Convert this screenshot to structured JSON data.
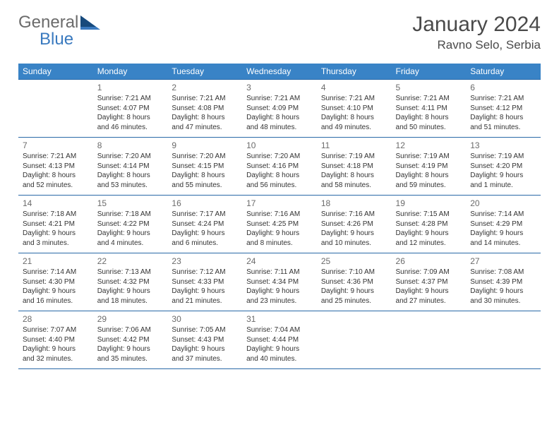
{
  "logo": {
    "word1": "General",
    "word2": "Blue"
  },
  "title": "January 2024",
  "location": "Ravno Selo, Serbia",
  "weekdays": [
    "Sunday",
    "Monday",
    "Tuesday",
    "Wednesday",
    "Thursday",
    "Friday",
    "Saturday"
  ],
  "colors": {
    "header_bg": "#3983c6",
    "header_text": "#ffffff",
    "row_border": "#2969a8",
    "daynum": "#6b6b6b",
    "body_text": "#333333",
    "logo_gray": "#6b6b6b",
    "logo_blue": "#3a7abf"
  },
  "weeks": [
    [
      {
        "num": "",
        "sunrise": "",
        "sunset": "",
        "daylight1": "",
        "daylight2": ""
      },
      {
        "num": "1",
        "sunrise": "Sunrise: 7:21 AM",
        "sunset": "Sunset: 4:07 PM",
        "daylight1": "Daylight: 8 hours",
        "daylight2": "and 46 minutes."
      },
      {
        "num": "2",
        "sunrise": "Sunrise: 7:21 AM",
        "sunset": "Sunset: 4:08 PM",
        "daylight1": "Daylight: 8 hours",
        "daylight2": "and 47 minutes."
      },
      {
        "num": "3",
        "sunrise": "Sunrise: 7:21 AM",
        "sunset": "Sunset: 4:09 PM",
        "daylight1": "Daylight: 8 hours",
        "daylight2": "and 48 minutes."
      },
      {
        "num": "4",
        "sunrise": "Sunrise: 7:21 AM",
        "sunset": "Sunset: 4:10 PM",
        "daylight1": "Daylight: 8 hours",
        "daylight2": "and 49 minutes."
      },
      {
        "num": "5",
        "sunrise": "Sunrise: 7:21 AM",
        "sunset": "Sunset: 4:11 PM",
        "daylight1": "Daylight: 8 hours",
        "daylight2": "and 50 minutes."
      },
      {
        "num": "6",
        "sunrise": "Sunrise: 7:21 AM",
        "sunset": "Sunset: 4:12 PM",
        "daylight1": "Daylight: 8 hours",
        "daylight2": "and 51 minutes."
      }
    ],
    [
      {
        "num": "7",
        "sunrise": "Sunrise: 7:21 AM",
        "sunset": "Sunset: 4:13 PM",
        "daylight1": "Daylight: 8 hours",
        "daylight2": "and 52 minutes."
      },
      {
        "num": "8",
        "sunrise": "Sunrise: 7:20 AM",
        "sunset": "Sunset: 4:14 PM",
        "daylight1": "Daylight: 8 hours",
        "daylight2": "and 53 minutes."
      },
      {
        "num": "9",
        "sunrise": "Sunrise: 7:20 AM",
        "sunset": "Sunset: 4:15 PM",
        "daylight1": "Daylight: 8 hours",
        "daylight2": "and 55 minutes."
      },
      {
        "num": "10",
        "sunrise": "Sunrise: 7:20 AM",
        "sunset": "Sunset: 4:16 PM",
        "daylight1": "Daylight: 8 hours",
        "daylight2": "and 56 minutes."
      },
      {
        "num": "11",
        "sunrise": "Sunrise: 7:19 AM",
        "sunset": "Sunset: 4:18 PM",
        "daylight1": "Daylight: 8 hours",
        "daylight2": "and 58 minutes."
      },
      {
        "num": "12",
        "sunrise": "Sunrise: 7:19 AM",
        "sunset": "Sunset: 4:19 PM",
        "daylight1": "Daylight: 8 hours",
        "daylight2": "and 59 minutes."
      },
      {
        "num": "13",
        "sunrise": "Sunrise: 7:19 AM",
        "sunset": "Sunset: 4:20 PM",
        "daylight1": "Daylight: 9 hours",
        "daylight2": "and 1 minute."
      }
    ],
    [
      {
        "num": "14",
        "sunrise": "Sunrise: 7:18 AM",
        "sunset": "Sunset: 4:21 PM",
        "daylight1": "Daylight: 9 hours",
        "daylight2": "and 3 minutes."
      },
      {
        "num": "15",
        "sunrise": "Sunrise: 7:18 AM",
        "sunset": "Sunset: 4:22 PM",
        "daylight1": "Daylight: 9 hours",
        "daylight2": "and 4 minutes."
      },
      {
        "num": "16",
        "sunrise": "Sunrise: 7:17 AM",
        "sunset": "Sunset: 4:24 PM",
        "daylight1": "Daylight: 9 hours",
        "daylight2": "and 6 minutes."
      },
      {
        "num": "17",
        "sunrise": "Sunrise: 7:16 AM",
        "sunset": "Sunset: 4:25 PM",
        "daylight1": "Daylight: 9 hours",
        "daylight2": "and 8 minutes."
      },
      {
        "num": "18",
        "sunrise": "Sunrise: 7:16 AM",
        "sunset": "Sunset: 4:26 PM",
        "daylight1": "Daylight: 9 hours",
        "daylight2": "and 10 minutes."
      },
      {
        "num": "19",
        "sunrise": "Sunrise: 7:15 AM",
        "sunset": "Sunset: 4:28 PM",
        "daylight1": "Daylight: 9 hours",
        "daylight2": "and 12 minutes."
      },
      {
        "num": "20",
        "sunrise": "Sunrise: 7:14 AM",
        "sunset": "Sunset: 4:29 PM",
        "daylight1": "Daylight: 9 hours",
        "daylight2": "and 14 minutes."
      }
    ],
    [
      {
        "num": "21",
        "sunrise": "Sunrise: 7:14 AM",
        "sunset": "Sunset: 4:30 PM",
        "daylight1": "Daylight: 9 hours",
        "daylight2": "and 16 minutes."
      },
      {
        "num": "22",
        "sunrise": "Sunrise: 7:13 AM",
        "sunset": "Sunset: 4:32 PM",
        "daylight1": "Daylight: 9 hours",
        "daylight2": "and 18 minutes."
      },
      {
        "num": "23",
        "sunrise": "Sunrise: 7:12 AM",
        "sunset": "Sunset: 4:33 PM",
        "daylight1": "Daylight: 9 hours",
        "daylight2": "and 21 minutes."
      },
      {
        "num": "24",
        "sunrise": "Sunrise: 7:11 AM",
        "sunset": "Sunset: 4:34 PM",
        "daylight1": "Daylight: 9 hours",
        "daylight2": "and 23 minutes."
      },
      {
        "num": "25",
        "sunrise": "Sunrise: 7:10 AM",
        "sunset": "Sunset: 4:36 PM",
        "daylight1": "Daylight: 9 hours",
        "daylight2": "and 25 minutes."
      },
      {
        "num": "26",
        "sunrise": "Sunrise: 7:09 AM",
        "sunset": "Sunset: 4:37 PM",
        "daylight1": "Daylight: 9 hours",
        "daylight2": "and 27 minutes."
      },
      {
        "num": "27",
        "sunrise": "Sunrise: 7:08 AM",
        "sunset": "Sunset: 4:39 PM",
        "daylight1": "Daylight: 9 hours",
        "daylight2": "and 30 minutes."
      }
    ],
    [
      {
        "num": "28",
        "sunrise": "Sunrise: 7:07 AM",
        "sunset": "Sunset: 4:40 PM",
        "daylight1": "Daylight: 9 hours",
        "daylight2": "and 32 minutes."
      },
      {
        "num": "29",
        "sunrise": "Sunrise: 7:06 AM",
        "sunset": "Sunset: 4:42 PM",
        "daylight1": "Daylight: 9 hours",
        "daylight2": "and 35 minutes."
      },
      {
        "num": "30",
        "sunrise": "Sunrise: 7:05 AM",
        "sunset": "Sunset: 4:43 PM",
        "daylight1": "Daylight: 9 hours",
        "daylight2": "and 37 minutes."
      },
      {
        "num": "31",
        "sunrise": "Sunrise: 7:04 AM",
        "sunset": "Sunset: 4:44 PM",
        "daylight1": "Daylight: 9 hours",
        "daylight2": "and 40 minutes."
      },
      {
        "num": "",
        "sunrise": "",
        "sunset": "",
        "daylight1": "",
        "daylight2": ""
      },
      {
        "num": "",
        "sunrise": "",
        "sunset": "",
        "daylight1": "",
        "daylight2": ""
      },
      {
        "num": "",
        "sunrise": "",
        "sunset": "",
        "daylight1": "",
        "daylight2": ""
      }
    ]
  ]
}
